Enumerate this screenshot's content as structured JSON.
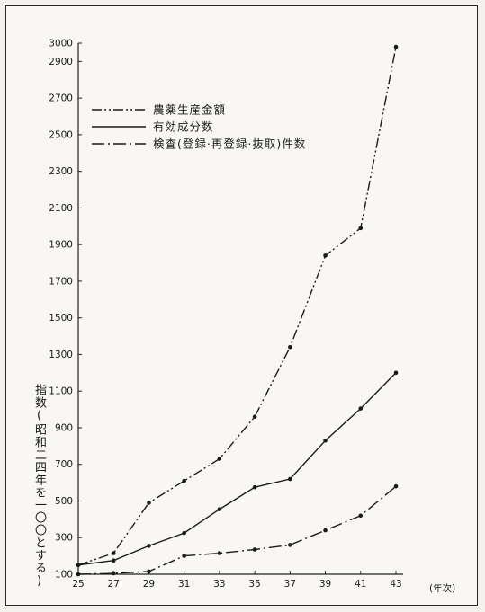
{
  "chart_data": {
    "type": "line",
    "ylabel": "指数(昭和二四年を一〇〇とする)",
    "xlabel": "(年次)",
    "ylim": [
      100,
      3000
    ],
    "yticks": [
      100,
      300,
      500,
      700,
      900,
      1100,
      1300,
      1500,
      1700,
      1900,
      2100,
      2300,
      2500,
      2700,
      2900,
      3000
    ],
    "x": [
      25,
      27,
      29,
      31,
      33,
      35,
      37,
      39,
      41,
      43
    ],
    "legend_position": "top-left",
    "series": [
      {
        "name": "農薬生産金額",
        "style": "dash-dot-dot",
        "markers": true,
        "values": [
          150,
          215,
          490,
          610,
          730,
          960,
          1340,
          1840,
          1990,
          2980
        ]
      },
      {
        "name": "有効成分数",
        "style": "solid",
        "markers": true,
        "values": [
          150,
          175,
          255,
          325,
          455,
          575,
          620,
          830,
          1005,
          1200
        ]
      },
      {
        "name": "検査(登録·再登録·抜取)件数",
        "style": "dash-dot",
        "markers": true,
        "values": [
          100,
          105,
          115,
          200,
          215,
          235,
          260,
          340,
          420,
          580
        ]
      }
    ]
  }
}
